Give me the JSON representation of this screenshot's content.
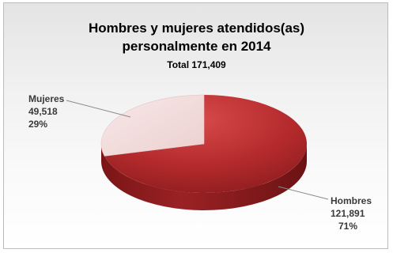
{
  "chart_data": {
    "type": "pie",
    "title_lines": [
      "Hombres y mujeres atendidos(as)",
      "personalmente en 2014"
    ],
    "subtitle": "Total 171,409",
    "slices": [
      {
        "label": "Hombres",
        "value": "121,891",
        "percent": "71%",
        "fraction": 0.71,
        "color": "#b0282a"
      },
      {
        "label": "Mujeres",
        "value": "49,518",
        "percent": "29%",
        "fraction": 0.29,
        "color": "#f2dcdb"
      }
    ]
  }
}
